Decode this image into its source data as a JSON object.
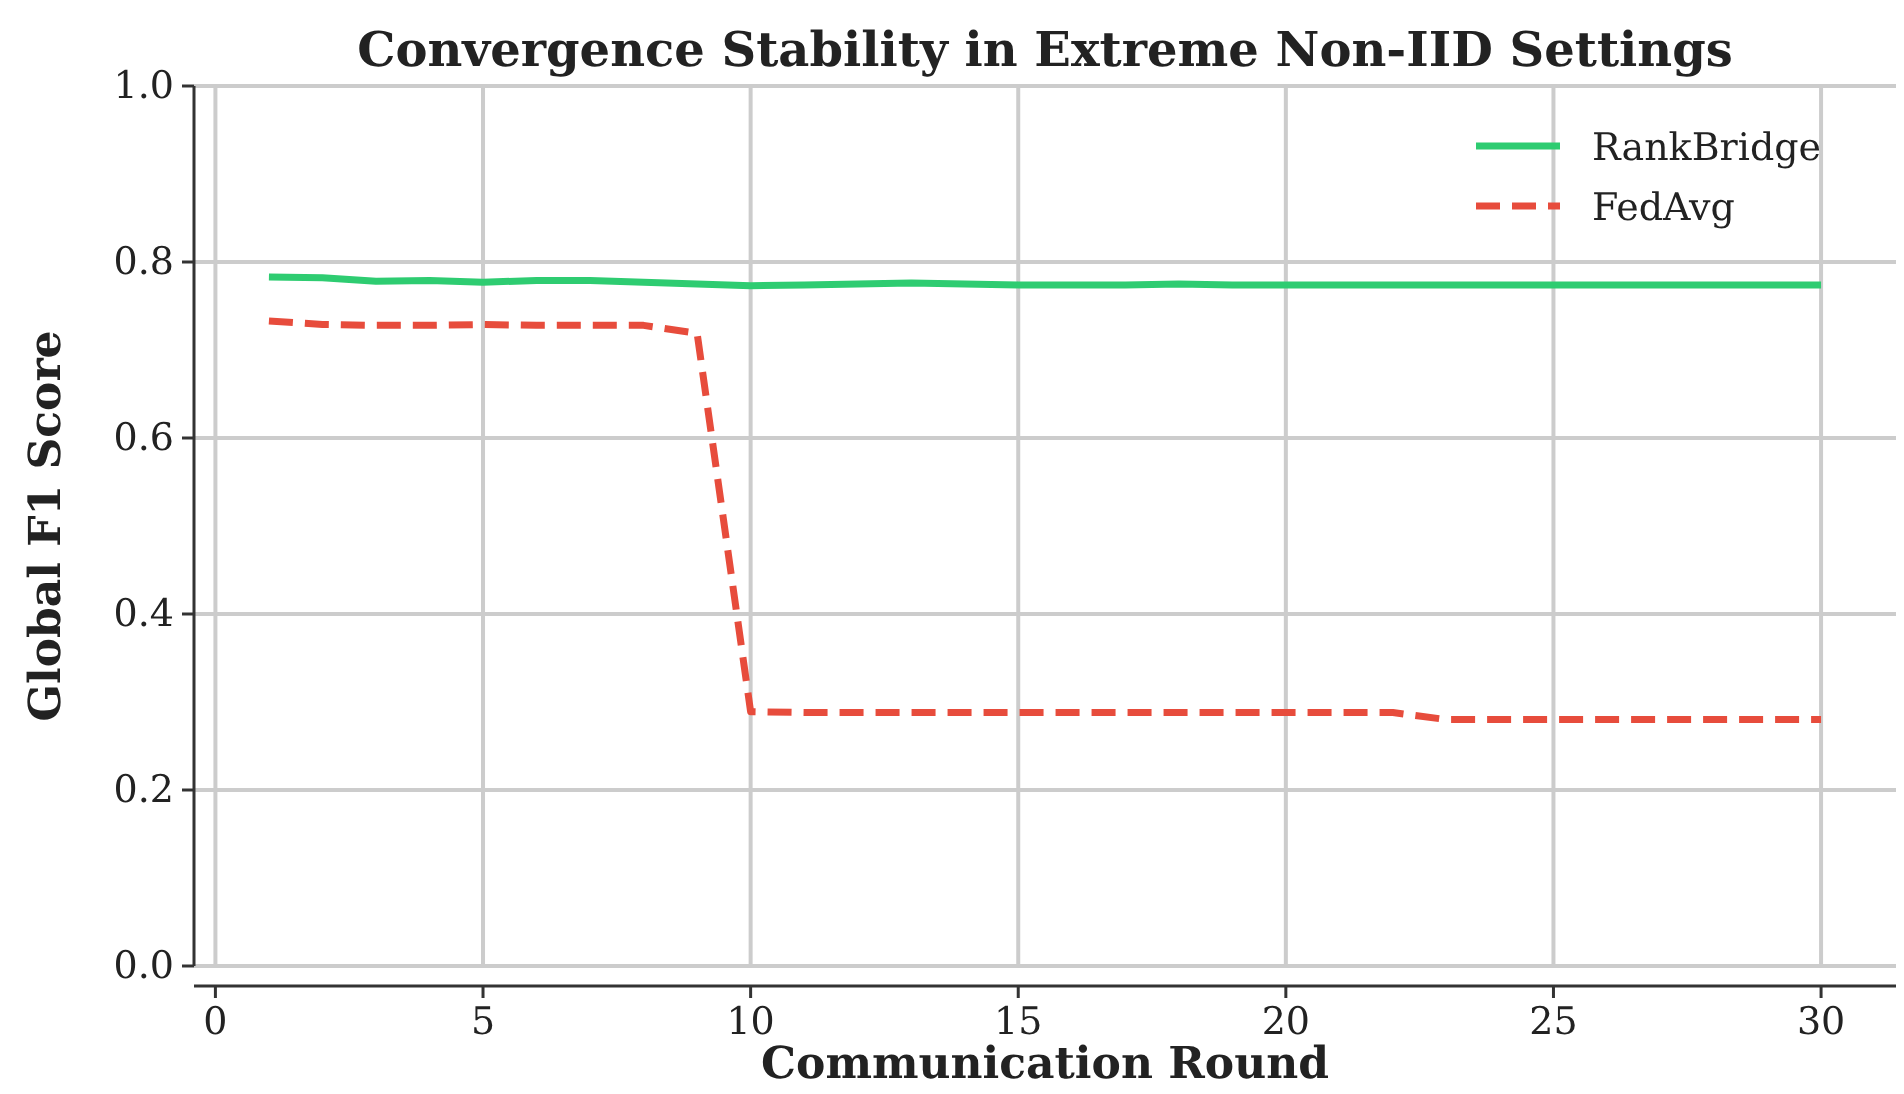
{
  "chart_data": {
    "type": "line",
    "title": "Convergence Stability in Extreme Non-IID Settings",
    "xlabel": "Communication Round",
    "ylabel": "Global F1 Score",
    "x": [
      1,
      2,
      3,
      4,
      5,
      6,
      7,
      8,
      9,
      10,
      11,
      12,
      13,
      14,
      15,
      16,
      17,
      18,
      19,
      20,
      21,
      22,
      23,
      24,
      25,
      26,
      27,
      28,
      29,
      30
    ],
    "series": [
      {
        "name": "RankBridge",
        "color": "#2ecc71",
        "line_style": "solid",
        "values": [
          0.783,
          0.782,
          0.778,
          0.779,
          0.777,
          0.779,
          0.779,
          0.777,
          0.775,
          0.773,
          0.774,
          0.775,
          0.776,
          0.775,
          0.774,
          0.774,
          0.774,
          0.775,
          0.774,
          0.774,
          0.774,
          0.774,
          0.774,
          0.774,
          0.774,
          0.774,
          0.774,
          0.774,
          0.774,
          0.774
        ]
      },
      {
        "name": "FedAvg",
        "color": "#e74c3c",
        "line_style": "dashed",
        "values": [
          0.733,
          0.729,
          0.728,
          0.728,
          0.729,
          0.728,
          0.728,
          0.728,
          0.719,
          0.289,
          0.288,
          0.288,
          0.288,
          0.288,
          0.288,
          0.288,
          0.288,
          0.288,
          0.288,
          0.288,
          0.288,
          0.288,
          0.28,
          0.28,
          0.28,
          0.28,
          0.28,
          0.28,
          0.28,
          0.28
        ]
      }
    ],
    "xlim": [
      -0.4,
      31.4
    ],
    "xticks": [
      0,
      5,
      10,
      15,
      20,
      25,
      30
    ],
    "ylim": [
      0,
      1.0
    ],
    "yticks": [
      {
        "value": 0,
        "label": "0.0"
      },
      {
        "value": 0.2,
        "label": "0.2"
      },
      {
        "value": 0.4,
        "label": "0.4"
      },
      {
        "value": 0.6,
        "label": "0.6"
      },
      {
        "value": 0.8,
        "label": "0.8"
      },
      {
        "value": 1.0,
        "label": "1.0"
      }
    ],
    "grid": true,
    "legend": "top right"
  }
}
